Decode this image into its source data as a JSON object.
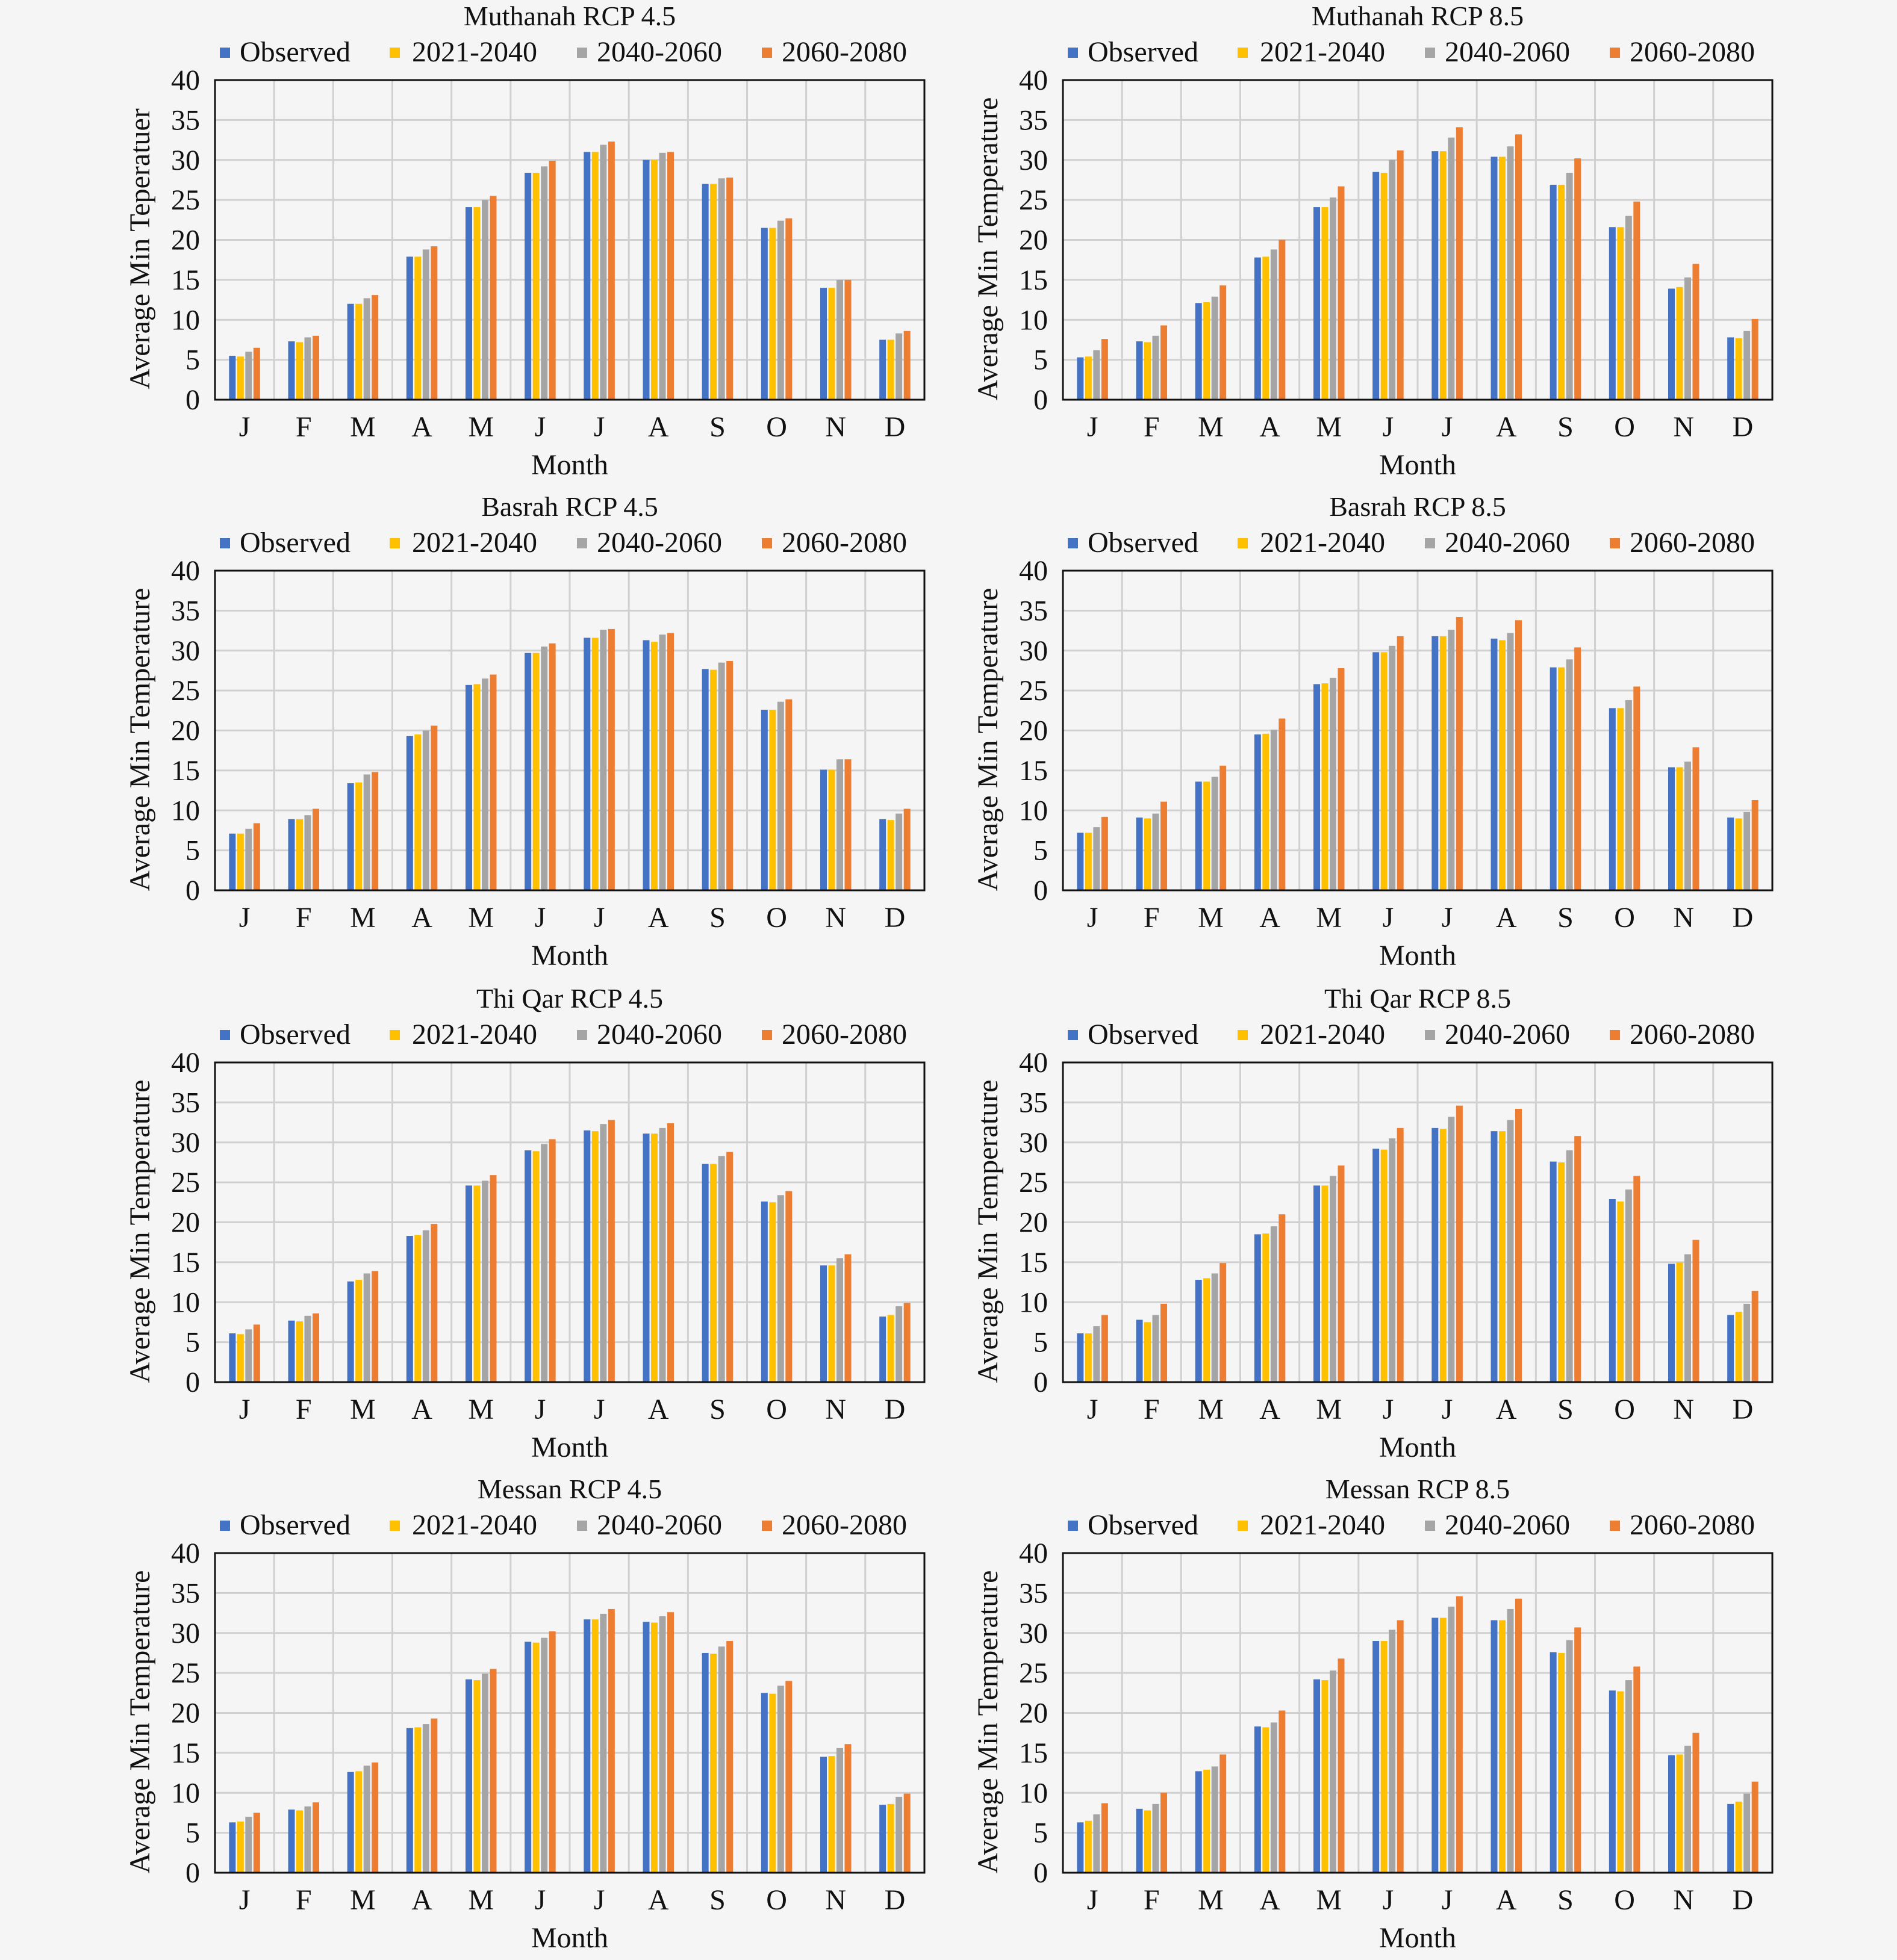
{
  "colors": {
    "Observed": "#4472c4",
    "2021-2040": "#ffc000",
    "2040-2060": "#a5a5a5",
    "2060-2080": "#ed7d31",
    "grid": "#d0d0d0",
    "background": "#f5f5f5"
  },
  "chart_data": [
    {
      "type": "bar",
      "title": "Muthanah RCP 4.5",
      "xlabel": "Month",
      "ylabel": "Average Min Teperatuer",
      "ylim": [
        0,
        40
      ],
      "yticks": [
        "0",
        "5",
        "10",
        "15",
        "20",
        "25",
        "30",
        "35",
        "40"
      ],
      "grid": true,
      "legend": "top",
      "categories": [
        "J",
        "F",
        "M",
        "A",
        "M",
        "J",
        "J",
        "A",
        "S",
        "O",
        "N",
        "D"
      ],
      "series": [
        {
          "name": "Observed",
          "values": [
            5.5,
            7.3,
            12,
            17.9,
            24.1,
            28.4,
            31,
            30,
            27,
            21.5,
            14,
            7.5
          ]
        },
        {
          "name": "2021-2040",
          "values": [
            5.4,
            7.2,
            12,
            17.9,
            24.1,
            28.4,
            31,
            30,
            27,
            21.5,
            14,
            7.5
          ]
        },
        {
          "name": "2040-2060",
          "values": [
            6,
            7.8,
            12.7,
            18.8,
            25,
            29.2,
            31.9,
            30.9,
            27.7,
            22.4,
            15,
            8.3
          ]
        },
        {
          "name": "2060-2080",
          "values": [
            6.5,
            8,
            13.1,
            19.2,
            25.5,
            29.9,
            32.3,
            31,
            27.8,
            22.7,
            15,
            8.6
          ]
        }
      ]
    },
    {
      "type": "bar",
      "title": "Muthanah RCP 8.5",
      "xlabel": "Month",
      "ylabel": "Average Min Temperature",
      "ylim": [
        0,
        40
      ],
      "yticks": [
        "0",
        "5",
        "10",
        "15",
        "20",
        "25",
        "30",
        "35",
        "40"
      ],
      "grid": true,
      "legend": "top",
      "categories": [
        "J",
        "F",
        "M",
        "A",
        "M",
        "J",
        "J",
        "A",
        "S",
        "O",
        "N",
        "D"
      ],
      "series": [
        {
          "name": "Observed",
          "values": [
            5.3,
            7.3,
            12.1,
            17.8,
            24.1,
            28.5,
            31.1,
            30.4,
            26.9,
            21.6,
            13.9,
            7.8
          ]
        },
        {
          "name": "2021-2040",
          "values": [
            5.4,
            7.2,
            12.2,
            17.9,
            24.1,
            28.4,
            31.1,
            30.4,
            26.9,
            21.6,
            14.1,
            7.7
          ]
        },
        {
          "name": "2040-2060",
          "values": [
            6.2,
            8,
            12.9,
            18.8,
            25.3,
            30,
            32.8,
            31.7,
            28.4,
            23,
            15.3,
            8.6
          ]
        },
        {
          "name": "2060-2080",
          "values": [
            7.6,
            9.3,
            14.3,
            20,
            26.7,
            31.2,
            34.1,
            33.2,
            30.2,
            24.8,
            17,
            10.1
          ]
        }
      ]
    },
    {
      "type": "bar",
      "title": "Basrah RCP 4.5",
      "xlabel": "Month",
      "ylabel": "Average Min Temperature",
      "ylim": [
        0,
        40
      ],
      "yticks": [
        "0",
        "5",
        "10",
        "15",
        "20",
        "25",
        "30",
        "35",
        "40"
      ],
      "grid": true,
      "legend": "top",
      "categories": [
        "J",
        "F",
        "M",
        "A",
        "M",
        "J",
        "J",
        "A",
        "S",
        "O",
        "N",
        "D"
      ],
      "series": [
        {
          "name": "Observed",
          "values": [
            7.1,
            8.9,
            13.4,
            19.3,
            25.7,
            29.7,
            31.6,
            31.3,
            27.7,
            22.6,
            15.1,
            8.9
          ]
        },
        {
          "name": "2021-2040",
          "values": [
            7.1,
            8.9,
            13.5,
            19.5,
            25.8,
            29.7,
            31.6,
            31.1,
            27.6,
            22.6,
            15.1,
            8.8
          ]
        },
        {
          "name": "2040-2060",
          "values": [
            7.7,
            9.4,
            14.5,
            20,
            26.5,
            30.5,
            32.6,
            32,
            28.5,
            23.6,
            16.4,
            9.6
          ]
        },
        {
          "name": "2060-2080",
          "values": [
            8.4,
            10.2,
            14.8,
            20.6,
            27,
            30.9,
            32.7,
            32.2,
            28.7,
            23.9,
            16.4,
            10.2
          ]
        }
      ]
    },
    {
      "type": "bar",
      "title": "Basrah RCP 8.5",
      "xlabel": "Month",
      "ylabel": "Average Min Temperature",
      "ylim": [
        0,
        40
      ],
      "yticks": [
        "0",
        "5",
        "10",
        "15",
        "20",
        "25",
        "30",
        "35",
        "40"
      ],
      "grid": true,
      "legend": "top",
      "categories": [
        "J",
        "F",
        "M",
        "A",
        "M",
        "J",
        "J",
        "A",
        "S",
        "O",
        "N",
        "D"
      ],
      "series": [
        {
          "name": "Observed",
          "values": [
            7.2,
            9.1,
            13.6,
            19.5,
            25.8,
            29.8,
            31.8,
            31.5,
            27.9,
            22.8,
            15.4,
            9.1
          ]
        },
        {
          "name": "2021-2040",
          "values": [
            7.2,
            9,
            13.6,
            19.6,
            25.9,
            29.8,
            31.8,
            31.3,
            27.9,
            22.8,
            15.4,
            9
          ]
        },
        {
          "name": "2040-2060",
          "values": [
            7.9,
            9.6,
            14.2,
            20.1,
            26.6,
            30.6,
            32.6,
            32.2,
            28.9,
            23.8,
            16.1,
            9.8
          ]
        },
        {
          "name": "2060-2080",
          "values": [
            9.2,
            11.1,
            15.6,
            21.5,
            27.8,
            31.8,
            34.2,
            33.8,
            30.4,
            25.5,
            17.9,
            11.3
          ]
        }
      ]
    },
    {
      "type": "bar",
      "title": "Thi Qar RCP 4.5",
      "xlabel": "Month",
      "ylabel": "Average Min Temperature",
      "ylim": [
        0,
        40
      ],
      "yticks": [
        "0",
        "5",
        "10",
        "15",
        "20",
        "25",
        "30",
        "35",
        "40"
      ],
      "grid": true,
      "legend": "top",
      "categories": [
        "J",
        "F",
        "M",
        "A",
        "M",
        "J",
        "J",
        "A",
        "S",
        "O",
        "N",
        "D"
      ],
      "series": [
        {
          "name": "Observed",
          "values": [
            6.1,
            7.7,
            12.6,
            18.3,
            24.6,
            29,
            31.5,
            31.1,
            27.3,
            22.6,
            14.6,
            8.2
          ]
        },
        {
          "name": "2021-2040",
          "values": [
            6,
            7.6,
            12.8,
            18.4,
            24.6,
            28.9,
            31.4,
            31.1,
            27.3,
            22.5,
            14.6,
            8.4
          ]
        },
        {
          "name": "2040-2060",
          "values": [
            6.6,
            8.3,
            13.6,
            19,
            25.2,
            29.8,
            32.3,
            31.8,
            28.3,
            23.4,
            15.5,
            9.5
          ]
        },
        {
          "name": "2060-2080",
          "values": [
            7.2,
            8.6,
            13.9,
            19.8,
            25.9,
            30.4,
            32.8,
            32.4,
            28.8,
            23.9,
            16,
            9.9
          ]
        }
      ]
    },
    {
      "type": "bar",
      "title": "Thi Qar RCP 8.5",
      "xlabel": "Month",
      "ylabel": "Average Min Temperature",
      "ylim": [
        0,
        40
      ],
      "yticks": [
        "0",
        "5",
        "10",
        "15",
        "20",
        "25",
        "30",
        "35",
        "40"
      ],
      "grid": true,
      "legend": "top",
      "categories": [
        "J",
        "F",
        "M",
        "A",
        "M",
        "J",
        "J",
        "A",
        "S",
        "O",
        "N",
        "D"
      ],
      "series": [
        {
          "name": "Observed",
          "values": [
            6.1,
            7.8,
            12.8,
            18.5,
            24.6,
            29.2,
            31.8,
            31.4,
            27.6,
            22.9,
            14.8,
            8.4
          ]
        },
        {
          "name": "2021-2040",
          "values": [
            6.1,
            7.5,
            13,
            18.6,
            24.6,
            29.1,
            31.7,
            31.4,
            27.5,
            22.6,
            15,
            8.8
          ]
        },
        {
          "name": "2040-2060",
          "values": [
            7,
            8.4,
            13.6,
            19.5,
            25.8,
            30.5,
            33.2,
            32.8,
            29,
            24.1,
            16,
            9.8
          ]
        },
        {
          "name": "2060-2080",
          "values": [
            8.4,
            9.8,
            14.9,
            21,
            27.1,
            31.8,
            34.6,
            34.2,
            30.8,
            25.8,
            17.8,
            11.4
          ]
        }
      ]
    },
    {
      "type": "bar",
      "title": "Messan RCP 4.5",
      "xlabel": "Month",
      "ylabel": "Average Min Temperature",
      "ylim": [
        0,
        40
      ],
      "yticks": [
        "0",
        "5",
        "10",
        "15",
        "20",
        "25",
        "30",
        "35",
        "40"
      ],
      "grid": true,
      "legend": "top",
      "categories": [
        "J",
        "F",
        "M",
        "A",
        "M",
        "J",
        "J",
        "A",
        "S",
        "O",
        "N",
        "D"
      ],
      "series": [
        {
          "name": "Observed",
          "values": [
            6.3,
            7.9,
            12.6,
            18.1,
            24.2,
            28.9,
            31.7,
            31.4,
            27.5,
            22.5,
            14.5,
            8.5
          ]
        },
        {
          "name": "2021-2040",
          "values": [
            6.4,
            7.8,
            12.7,
            18.2,
            24.1,
            28.8,
            31.7,
            31.3,
            27.4,
            22.4,
            14.6,
            8.6
          ]
        },
        {
          "name": "2040-2060",
          "values": [
            7,
            8.3,
            13.4,
            18.6,
            24.9,
            29.4,
            32.4,
            32.1,
            28.3,
            23.4,
            15.6,
            9.5
          ]
        },
        {
          "name": "2060-2080",
          "values": [
            7.5,
            8.8,
            13.8,
            19.3,
            25.5,
            30.2,
            33,
            32.6,
            29,
            24,
            16.1,
            9.9
          ]
        }
      ]
    },
    {
      "type": "bar",
      "title": "Messan RCP 8.5",
      "xlabel": "Month",
      "ylabel": "Average Min Temperature",
      "ylim": [
        0,
        40
      ],
      "yticks": [
        "0",
        "5",
        "10",
        "15",
        "20",
        "25",
        "30",
        "35",
        "40"
      ],
      "grid": true,
      "legend": "top",
      "categories": [
        "J",
        "F",
        "M",
        "A",
        "M",
        "J",
        "J",
        "A",
        "S",
        "O",
        "N",
        "D"
      ],
      "series": [
        {
          "name": "Observed",
          "values": [
            6.3,
            8,
            12.7,
            18.3,
            24.2,
            29,
            31.9,
            31.6,
            27.6,
            22.8,
            14.7,
            8.6
          ]
        },
        {
          "name": "2021-2040",
          "values": [
            6.5,
            7.8,
            12.9,
            18.2,
            24.1,
            29,
            31.9,
            31.6,
            27.5,
            22.7,
            14.8,
            8.9
          ]
        },
        {
          "name": "2040-2060",
          "values": [
            7.3,
            8.6,
            13.3,
            18.8,
            25.3,
            30.4,
            33.3,
            33,
            29.1,
            24.1,
            15.9,
            9.9
          ]
        },
        {
          "name": "2060-2080",
          "values": [
            8.7,
            10,
            14.8,
            20.3,
            26.8,
            31.6,
            34.6,
            34.3,
            30.7,
            25.8,
            17.5,
            11.4
          ]
        }
      ]
    }
  ]
}
